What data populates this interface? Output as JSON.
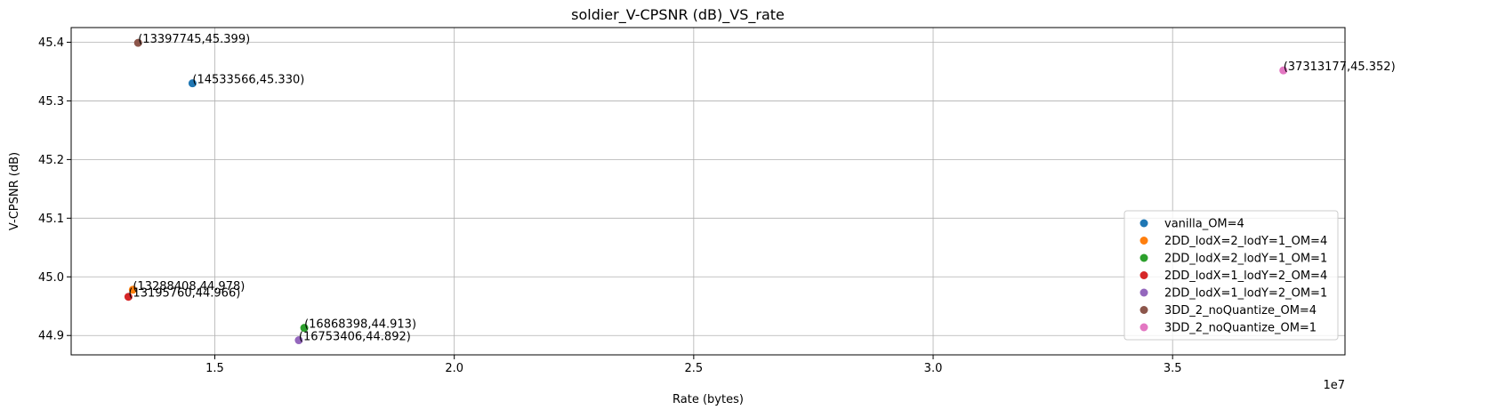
{
  "chart_data": {
    "type": "scatter",
    "title": "soldier_V-CPSNR (dB)_VS_rate",
    "xlabel": "Rate (bytes)",
    "ylabel": "V-CPSNR (dB)",
    "x_offset_label": "1e7",
    "xlim": [
      12000000,
      38600000
    ],
    "ylim": [
      44.867,
      45.425
    ],
    "xticks": [
      15000000,
      20000000,
      25000000,
      30000000,
      35000000
    ],
    "xtick_labels": [
      "1.5",
      "2.0",
      "2.5",
      "3.0",
      "3.5"
    ],
    "yticks": [
      44.9,
      45.0,
      45.1,
      45.2,
      45.3,
      45.4
    ],
    "ytick_labels": [
      "44.9",
      "45.0",
      "45.1",
      "45.2",
      "45.3",
      "45.4"
    ],
    "grid": true,
    "legend_position": "lower-right",
    "series": [
      {
        "name": "vanilla_OM=4",
        "color": "#1f77b4",
        "x": [
          14533566
        ],
        "y": [
          45.33
        ],
        "label": "(14533566,45.330)"
      },
      {
        "name": "2DD_lodX=2_lodY=1_OM=4",
        "color": "#ff7f0e",
        "x": [
          13288408
        ],
        "y": [
          44.978
        ],
        "label": "(13288408,44.978)"
      },
      {
        "name": "2DD_lodX=2_lodY=1_OM=1",
        "color": "#2ca02c",
        "x": [
          16868398
        ],
        "y": [
          44.913
        ],
        "label": "(16868398,44.913)"
      },
      {
        "name": "2DD_lodX=1_lodY=2_OM=4",
        "color": "#d62728",
        "x": [
          13195760
        ],
        "y": [
          44.966
        ],
        "label": "(13195760,44.966)"
      },
      {
        "name": "2DD_lodX=1_lodY=2_OM=1",
        "color": "#9467bd",
        "x": [
          16753406
        ],
        "y": [
          44.892
        ],
        "label": "(16753406,44.892)"
      },
      {
        "name": "3DD_2_noQuantize_OM=4",
        "color": "#8c564b",
        "x": [
          13397745
        ],
        "y": [
          45.399
        ],
        "label": "(13397745,45.399)"
      },
      {
        "name": "3DD_2_noQuantize_OM=1",
        "color": "#e377c2",
        "x": [
          37313177
        ],
        "y": [
          45.352
        ],
        "label": "(37313177,45.352)"
      }
    ]
  }
}
